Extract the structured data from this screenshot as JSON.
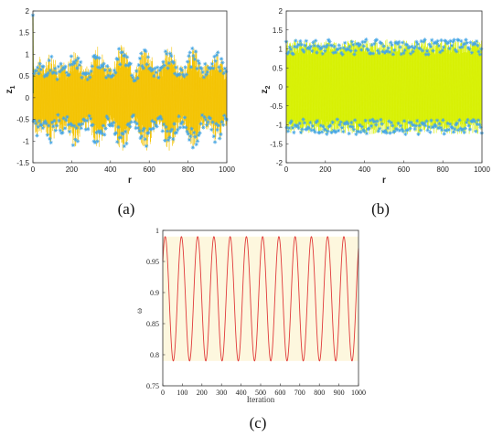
{
  "chart_data": [
    {
      "panel": "a",
      "type": "line",
      "caption": "(a)",
      "xlabel": "r",
      "ylabel": "z",
      "ylabel_sub": "1",
      "xlim": [
        0,
        1000
      ],
      "ylim": [
        -1.5,
        2
      ],
      "xticks": [
        0,
        200,
        400,
        600,
        800,
        1000
      ],
      "yticks": [
        -1.5,
        -1,
        -0.5,
        0,
        0.5,
        1,
        1.5,
        2
      ],
      "grid": false,
      "legend": "none",
      "n_points": 1000,
      "first_point": {
        "x": 0,
        "y": 1.9
      },
      "signal": {
        "center": 0.0,
        "peak_amplitude": 1.25,
        "min_amplitude": 0.15,
        "modulation_periods": [
          130,
          37
        ]
      },
      "colors": {
        "line": "#f4c300",
        "marker": "#45a6e6",
        "start_segment": "#7a8f00"
      }
    },
    {
      "panel": "b",
      "type": "line",
      "caption": "(b)",
      "xlabel": "r",
      "ylabel": "z",
      "ylabel_sub": "2",
      "xlim": [
        0,
        1000
      ],
      "ylim": [
        -2,
        2
      ],
      "xticks": [
        0,
        200,
        400,
        600,
        800,
        1000
      ],
      "yticks": [
        -2,
        -1.5,
        -1,
        -0.5,
        0,
        0.5,
        1,
        1.5,
        2
      ],
      "grid": false,
      "legend": "none",
      "n_points": 1000,
      "signal": {
        "center": 0.0,
        "alternating_amplitude": [
          0.85,
          1.25
        ]
      },
      "colors": {
        "line": "#d7f000",
        "marker": "#45a6e6"
      }
    },
    {
      "panel": "c",
      "type": "line",
      "caption": "(c)",
      "xlabel": "Iteration",
      "ylabel": "ω",
      "xlim": [
        0,
        1000
      ],
      "ylim": [
        0.75,
        1
      ],
      "xticks": [
        0,
        100,
        200,
        300,
        400,
        500,
        600,
        700,
        800,
        900,
        1000
      ],
      "yticks": [
        0.75,
        0.8,
        0.85,
        0.9,
        0.95,
        1
      ],
      "grid": false,
      "legend": "none",
      "series": [
        {
          "min": 0.79,
          "max": 0.99,
          "period": 83,
          "start": 0.95
        }
      ],
      "colors": {
        "line": "#e03a3a",
        "band": "#fbf1c8"
      }
    }
  ]
}
